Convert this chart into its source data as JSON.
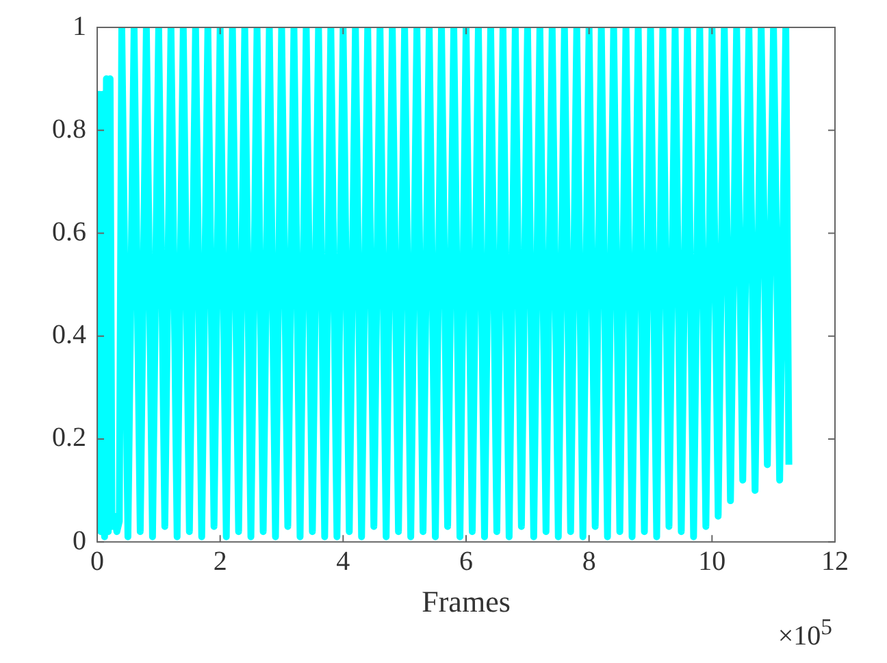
{
  "chart_data": {
    "type": "line",
    "xlabel": "Frames",
    "annotations": [
      "×10$^{5}$"
    ],
    "xlim": [
      0,
      12
    ],
    "xticks": [
      0,
      2,
      4,
      6,
      8,
      10,
      12
    ],
    "ylim": [
      0,
      1
    ],
    "yticks": [
      0,
      0.2,
      0.4,
      0.6,
      0.8,
      1
    ],
    "grid": false,
    "legend": false,
    "marker": "none",
    "line_style": "solid",
    "series": [
      {
        "color": "#00ffff",
        "x": [
          0,
          0.02,
          0.04,
          0.06,
          0.09,
          0.12,
          0.15,
          0.18,
          0.21,
          0.24,
          0.28,
          0.32,
          0.36,
          0.4,
          0.5,
          0.6,
          0.7,
          0.8,
          0.9,
          1.0,
          1.1,
          1.2,
          1.3,
          1.4,
          1.5,
          1.6,
          1.7,
          1.8,
          1.9,
          2.0,
          2.1,
          2.2,
          2.3,
          2.4,
          2.5,
          2.6,
          2.7,
          2.8,
          2.9,
          3.0,
          3.1,
          3.2,
          3.3,
          3.4,
          3.5,
          3.6,
          3.7,
          3.8,
          3.9,
          4.0,
          4.1,
          4.2,
          4.3,
          4.4,
          4.5,
          4.6,
          4.7,
          4.8,
          4.9,
          5.0,
          5.1,
          5.2,
          5.3,
          5.4,
          5.5,
          5.6,
          5.7,
          5.8,
          5.9,
          6.0,
          6.1,
          6.2,
          6.3,
          6.4,
          6.5,
          6.6,
          6.7,
          6.8,
          6.9,
          7.0,
          7.1,
          7.2,
          7.3,
          7.4,
          7.5,
          7.6,
          7.7,
          7.8,
          7.9,
          8.0,
          8.1,
          8.2,
          8.3,
          8.4,
          8.5,
          8.6,
          8.7,
          8.8,
          8.9,
          9.0,
          9.1,
          9.2,
          9.3,
          9.4,
          9.5,
          9.6,
          9.7,
          9.8,
          9.9,
          10.0,
          10.1,
          10.2,
          10.3,
          10.4,
          10.5,
          10.6,
          10.7,
          10.8,
          10.9,
          11.0,
          11.1,
          11.2,
          11.25
        ],
        "values": [
          0.87,
          0.03,
          0.87,
          0.02,
          0.87,
          0.01,
          0.9,
          0.02,
          0.9,
          0.03,
          0.05,
          0.02,
          0.04,
          1,
          0.01,
          1,
          0.02,
          1,
          0.01,
          1,
          0.03,
          1,
          0.01,
          1,
          0.02,
          1,
          0.01,
          1,
          0.03,
          1,
          0.01,
          1,
          0.02,
          1,
          0.01,
          1,
          0.02,
          1,
          0.01,
          1,
          0.03,
          1,
          0.01,
          1,
          0.02,
          1,
          0.01,
          1,
          0.01,
          1,
          0.02,
          1,
          0.01,
          1,
          0.03,
          1,
          0.01,
          1,
          0.02,
          1,
          0.01,
          1,
          0.02,
          1,
          0.01,
          1,
          0.03,
          1,
          0.01,
          1,
          0.02,
          1,
          0.01,
          1,
          0.02,
          1,
          0.01,
          1,
          0.03,
          1,
          0.01,
          1,
          0.02,
          1,
          0.01,
          1,
          0.02,
          1,
          0.01,
          1,
          0.03,
          1,
          0.01,
          1,
          0.02,
          1,
          0.01,
          1,
          0.02,
          1,
          0.01,
          1,
          0.03,
          1,
          0.02,
          1,
          0.01,
          1,
          0.03,
          1,
          0.05,
          1,
          0.08,
          1,
          0.12,
          1,
          0.1,
          1,
          0.15,
          1,
          0.12,
          1,
          0.15
        ]
      }
    ]
  }
}
